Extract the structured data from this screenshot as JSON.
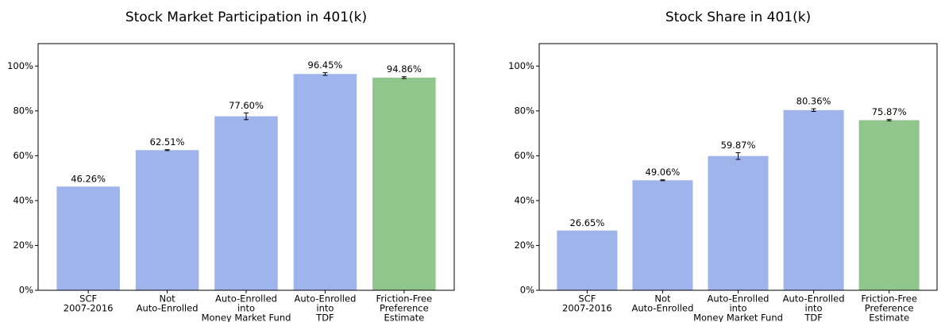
{
  "chart_data": [
    {
      "type": "bar",
      "title": "Stock Market Participation in 401(k)",
      "categories": [
        [
          "SCF",
          "2007-2016"
        ],
        [
          "Not",
          "Auto-Enrolled"
        ],
        [
          "Auto-Enrolled",
          "into",
          "Money Market Fund"
        ],
        [
          "Auto-Enrolled",
          "into",
          "TDF"
        ],
        [
          "Friction-Free",
          "Preference",
          "Estimate"
        ]
      ],
      "values": [
        46.26,
        62.51,
        77.6,
        96.45,
        94.86
      ],
      "value_labels": [
        "46.26%",
        "62.51%",
        "77.60%",
        "96.45%",
        "94.86%"
      ],
      "errors": [
        null,
        0.2,
        1.5,
        0.6,
        0.4
      ],
      "colors": [
        "#a0b4ec",
        "#a0b4ec",
        "#a0b4ec",
        "#a0b4ec",
        "#90c68c"
      ],
      "ylim": [
        0,
        110
      ],
      "yticks": [
        {
          "value": 0,
          "label": "0%"
        },
        {
          "value": 20,
          "label": "20%"
        },
        {
          "value": 40,
          "label": "40%"
        },
        {
          "value": 60,
          "label": "60%"
        },
        {
          "value": 80,
          "label": "80%"
        },
        {
          "value": 100,
          "label": "100%"
        }
      ]
    },
    {
      "type": "bar",
      "title": "Stock Share in 401(k)",
      "categories": [
        [
          "SCF",
          "2007-2016"
        ],
        [
          "Not",
          "Auto-Enrolled"
        ],
        [
          "Auto-Enrolled",
          "into",
          "Money Market Fund"
        ],
        [
          "Auto-Enrolled",
          "into",
          "TDF"
        ],
        [
          "Friction-Free",
          "Preference",
          "Estimate"
        ]
      ],
      "values": [
        26.65,
        49.06,
        59.87,
        80.36,
        75.87
      ],
      "value_labels": [
        "26.65%",
        "49.06%",
        "59.87%",
        "80.36%",
        "75.87%"
      ],
      "errors": [
        null,
        0.2,
        1.5,
        0.6,
        0.3
      ],
      "colors": [
        "#a0b4ec",
        "#a0b4ec",
        "#a0b4ec",
        "#a0b4ec",
        "#90c68c"
      ],
      "ylim": [
        0,
        110
      ],
      "yticks": [
        {
          "value": 0,
          "label": "0%"
        },
        {
          "value": 20,
          "label": "20%"
        },
        {
          "value": 40,
          "label": "40%"
        },
        {
          "value": 60,
          "label": "60%"
        },
        {
          "value": 80,
          "label": "80%"
        },
        {
          "value": 100,
          "label": "100%"
        }
      ]
    }
  ]
}
